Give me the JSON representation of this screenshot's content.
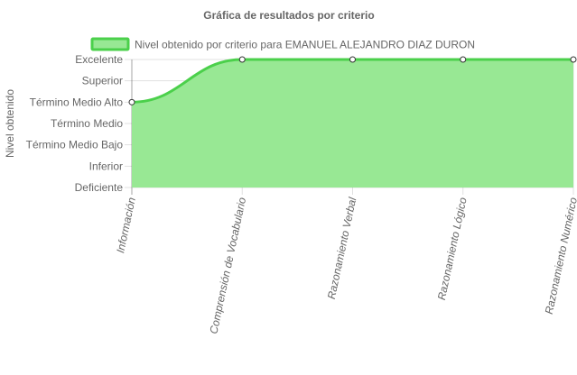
{
  "chart_data": {
    "type": "area",
    "title": "Gráfica de resultados por criterio",
    "ylabel": "Nivel obtenido",
    "xlabel": "",
    "categories": [
      "Información",
      "Comprensión de Vocabulario",
      "Razonamiento Verbal",
      "Razonamiento Lógico",
      "Razonamiento Numérico"
    ],
    "y_levels": [
      "Deficiente",
      "Inferior",
      "Término Medio Bajo",
      "Término Medio",
      "Término Medio Alto",
      "Superior",
      "Excelente"
    ],
    "series": [
      {
        "name": "Nivel obtenido por criterio para EMANUEL ALEJANDRO DIAZ DURON",
        "values": [
          "Término Medio Alto",
          "Excelente",
          "Excelente",
          "Excelente",
          "Excelente"
        ]
      }
    ],
    "colors": {
      "fill": "#98e894",
      "stroke": "#4bd04b",
      "point_fill": "#ffffff",
      "point_stroke": "#333333"
    },
    "legend_position": "top",
    "grid": true
  }
}
